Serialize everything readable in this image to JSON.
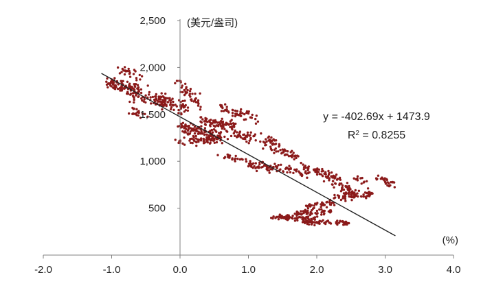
{
  "chart_data": {
    "type": "scatter",
    "title": "",
    "ylabel": "(美元/盎司)",
    "xlabel": "(%)",
    "xlim": [
      -2.0,
      4.0
    ],
    "ylim": [
      0,
      2500
    ],
    "x_ticks": [
      "-2.0",
      "-1.0",
      "0.0",
      "1.0",
      "2.0",
      "3.0",
      "4.0"
    ],
    "y_ticks": [
      "500",
      "1,000",
      "1,500",
      "2,000",
      "2,500"
    ],
    "grid": false,
    "legend": "none",
    "marker_color": "#8B1A1A",
    "trendline": {
      "slope": -402.69,
      "intercept": 1473.9,
      "x_range": [
        -1.15,
        3.15
      ],
      "color": "#222222",
      "equation_label": "y = -402.69x + 1473.9",
      "r2_label_prefix": "R",
      "r2_label_sup": "2",
      "r2_label_value": " = 0.8255"
    },
    "clusters": [
      {
        "x0": -1.1,
        "x1": -0.6,
        "y0": 1850,
        "y1": 1750,
        "spread": 70,
        "n": 90
      },
      {
        "x0": -0.9,
        "x1": -0.55,
        "y0": 2000,
        "y1": 1880,
        "spread": 50,
        "n": 25
      },
      {
        "x0": -0.7,
        "x1": -0.2,
        "y0": 1720,
        "y1": 1620,
        "spread": 70,
        "n": 70
      },
      {
        "x0": -0.75,
        "x1": -0.5,
        "y0": 1540,
        "y1": 1480,
        "spread": 50,
        "n": 20
      },
      {
        "x0": -0.3,
        "x1": 0.1,
        "y0": 1680,
        "y1": 1560,
        "spread": 70,
        "n": 60
      },
      {
        "x0": -0.05,
        "x1": 0.3,
        "y0": 1870,
        "y1": 1600,
        "spread": 60,
        "n": 40
      },
      {
        "x0": 0.0,
        "x1": 0.6,
        "y0": 1360,
        "y1": 1250,
        "spread": 80,
        "n": 120
      },
      {
        "x0": -0.02,
        "x1": 0.5,
        "y0": 1200,
        "y1": 1240,
        "spread": 50,
        "n": 50
      },
      {
        "x0": 0.3,
        "x1": 0.8,
        "y0": 1440,
        "y1": 1380,
        "spread": 60,
        "n": 70
      },
      {
        "x0": 0.55,
        "x1": 1.1,
        "y0": 1580,
        "y1": 1470,
        "spread": 50,
        "n": 50
      },
      {
        "x0": 0.7,
        "x1": 1.4,
        "y0": 1300,
        "y1": 1190,
        "spread": 60,
        "n": 70
      },
      {
        "x0": 0.6,
        "x1": 1.0,
        "y0": 1060,
        "y1": 1000,
        "spread": 40,
        "n": 25
      },
      {
        "x0": 1.3,
        "x1": 1.7,
        "y0": 1160,
        "y1": 1050,
        "spread": 50,
        "n": 40
      },
      {
        "x0": 1.0,
        "x1": 1.9,
        "y0": 960,
        "y1": 880,
        "spread": 50,
        "n": 90
      },
      {
        "x0": 1.8,
        "x1": 2.3,
        "y0": 940,
        "y1": 820,
        "spread": 50,
        "n": 50
      },
      {
        "x0": 2.2,
        "x1": 2.55,
        "y0": 820,
        "y1": 650,
        "spread": 60,
        "n": 50
      },
      {
        "x0": 2.25,
        "x1": 2.8,
        "y0": 620,
        "y1": 650,
        "spread": 40,
        "n": 60
      },
      {
        "x0": 2.9,
        "x1": 3.1,
        "y0": 850,
        "y1": 760,
        "spread": 40,
        "n": 25
      },
      {
        "x0": 2.55,
        "x1": 2.75,
        "y0": 820,
        "y1": 750,
        "spread": 30,
        "n": 12
      },
      {
        "x0": 1.85,
        "x1": 2.25,
        "y0": 520,
        "y1": 560,
        "spread": 40,
        "n": 35
      },
      {
        "x0": 1.7,
        "x1": 2.2,
        "y0": 440,
        "y1": 460,
        "spread": 35,
        "n": 50
      },
      {
        "x0": 1.35,
        "x1": 2.0,
        "y0": 400,
        "y1": 390,
        "spread": 25,
        "n": 80
      },
      {
        "x0": 1.8,
        "x1": 2.45,
        "y0": 350,
        "y1": 340,
        "spread": 25,
        "n": 70
      }
    ]
  }
}
